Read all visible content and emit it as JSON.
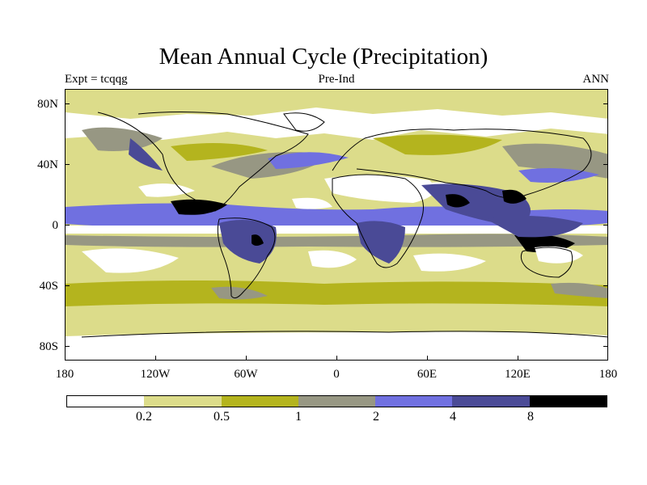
{
  "figure": {
    "title": "Mean Annual Cycle (Precipitation)",
    "experiment_label": "Expt = tcqqg",
    "scenario_label": "Pre-Ind",
    "period_label": "ANN"
  },
  "axes": {
    "y_labels": [
      "80N",
      "40N",
      "0",
      "40S",
      "80S"
    ],
    "x_labels": [
      "180",
      "120W",
      "60W",
      "0",
      "60E",
      "120E",
      "180"
    ]
  },
  "colorbar": {
    "levels": [
      "0.2",
      "0.5",
      "1",
      "2",
      "4",
      "8"
    ],
    "colors": [
      "#ffffff",
      "#dcdc8a",
      "#b4b41e",
      "#979783",
      "#7070e0",
      "#4a4a96",
      "#000000"
    ]
  },
  "map": {
    "projection": "equirectangular",
    "lon_range": [
      -180,
      180
    ],
    "lat_range": [
      -90,
      90
    ]
  }
}
